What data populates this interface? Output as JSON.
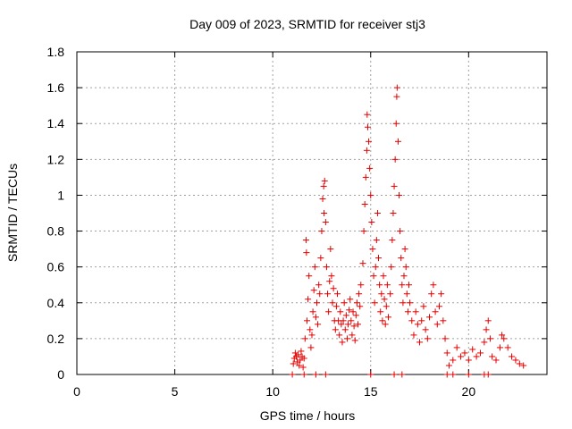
{
  "chart_data": {
    "type": "scatter",
    "title": "Day 009 of 2023, SRMTID for receiver stj3",
    "xlabel": "GPS time / hours",
    "ylabel": "SRMTID / TECUs",
    "xlim": [
      0,
      24
    ],
    "ylim": [
      0,
      1.8
    ],
    "xticks": [
      0,
      5,
      10,
      15,
      20
    ],
    "yticks": [
      0,
      0.2,
      0.4,
      0.6,
      0.8,
      1,
      1.2,
      1.4,
      1.6,
      1.8
    ],
    "xtick_labels": [
      "0",
      "5",
      "10",
      "15",
      "20"
    ],
    "ytick_labels": [
      "0",
      "0.2",
      "0.4",
      "0.6",
      "0.8",
      "1",
      "1.2",
      "1.4",
      "1.6",
      "1.8"
    ],
    "grid": true,
    "marker": "+",
    "color": "#e00000",
    "series": [
      {
        "name": "SRMTID",
        "points": [
          [
            11.0,
            0.0
          ],
          [
            11.05,
            0.06
          ],
          [
            11.1,
            0.09
          ],
          [
            11.15,
            0.12
          ],
          [
            11.2,
            0.1
          ],
          [
            11.25,
            0.07
          ],
          [
            11.3,
            0.11
          ],
          [
            11.35,
            0.05
          ],
          [
            11.4,
            0.08
          ],
          [
            11.45,
            0.13
          ],
          [
            11.5,
            0.1
          ],
          [
            11.55,
            0.04
          ],
          [
            11.6,
            0.09
          ],
          [
            11.65,
            0.2
          ],
          [
            11.6,
            0.0
          ],
          [
            11.75,
            0.3
          ],
          [
            11.8,
            0.42
          ],
          [
            11.85,
            0.55
          ],
          [
            11.9,
            0.25
          ],
          [
            11.95,
            0.15
          ],
          [
            12.0,
            0.22
          ],
          [
            12.05,
            0.35
          ],
          [
            12.1,
            0.47
          ],
          [
            12.15,
            0.6
          ],
          [
            11.7,
            0.75
          ],
          [
            11.72,
            0.68
          ],
          [
            12.2,
            0.0
          ],
          [
            12.2,
            0.32
          ],
          [
            12.25,
            0.4
          ],
          [
            12.3,
            0.28
          ],
          [
            12.35,
            0.5
          ],
          [
            12.4,
            0.45
          ],
          [
            12.45,
            0.65
          ],
          [
            12.5,
            0.8
          ],
          [
            12.55,
            0.98
          ],
          [
            12.6,
            1.05
          ],
          [
            12.62,
            0.9
          ],
          [
            12.65,
            1.08
          ],
          [
            12.7,
            0.85
          ],
          [
            12.7,
            0.0
          ],
          [
            12.75,
            0.6
          ],
          [
            12.8,
            0.45
          ],
          [
            12.85,
            0.35
          ],
          [
            12.9,
            0.52
          ],
          [
            12.95,
            0.7
          ],
          [
            13.0,
            0.55
          ],
          [
            13.05,
            0.4
          ],
          [
            13.1,
            0.48
          ],
          [
            13.15,
            0.3
          ],
          [
            13.2,
            0.25
          ],
          [
            13.25,
            0.38
          ],
          [
            13.3,
            0.45
          ],
          [
            13.35,
            0.3
          ],
          [
            13.4,
            0.22
          ],
          [
            13.45,
            0.35
          ],
          [
            13.5,
            0.28
          ],
          [
            13.55,
            0.18
          ],
          [
            13.6,
            0.3
          ],
          [
            13.65,
            0.4
          ],
          [
            13.7,
            0.25
          ],
          [
            13.75,
            0.33
          ],
          [
            13.8,
            0.2
          ],
          [
            13.85,
            0.28
          ],
          [
            13.9,
            0.36
          ],
          [
            13.95,
            0.42
          ],
          [
            14.0,
            0.3
          ],
          [
            14.05,
            0.22
          ],
          [
            14.1,
            0.35
          ],
          [
            14.15,
            0.27
          ],
          [
            14.2,
            0.19
          ],
          [
            14.25,
            0.33
          ],
          [
            14.3,
            0.4
          ],
          [
            14.35,
            0.28
          ],
          [
            14.4,
            0.45
          ],
          [
            14.45,
            0.38
          ],
          [
            14.5,
            0.5
          ],
          [
            14.6,
            0.62
          ],
          [
            14.65,
            0.8
          ],
          [
            14.7,
            0.95
          ],
          [
            14.75,
            1.1
          ],
          [
            14.8,
            1.25
          ],
          [
            14.82,
            1.45
          ],
          [
            14.85,
            1.38
          ],
          [
            14.9,
            1.3
          ],
          [
            14.95,
            1.15
          ],
          [
            15.0,
            1.0
          ],
          [
            15.05,
            0.85
          ],
          [
            15.0,
            0.0
          ],
          [
            15.1,
            0.7
          ],
          [
            15.15,
            0.55
          ],
          [
            15.2,
            0.4
          ],
          [
            15.25,
            0.6
          ],
          [
            15.3,
            0.75
          ],
          [
            15.35,
            0.9
          ],
          [
            15.4,
            0.65
          ],
          [
            15.45,
            0.5
          ],
          [
            15.5,
            0.35
          ],
          [
            15.55,
            0.45
          ],
          [
            15.6,
            0.3
          ],
          [
            15.65,
            0.55
          ],
          [
            15.7,
            0.42
          ],
          [
            15.75,
            0.28
          ],
          [
            15.8,
            0.38
          ],
          [
            15.85,
            0.5
          ],
          [
            15.9,
            0.32
          ],
          [
            16.0,
            0.45
          ],
          [
            16.05,
            0.6
          ],
          [
            16.1,
            0.75
          ],
          [
            16.15,
            0.9
          ],
          [
            16.2,
            1.05
          ],
          [
            16.25,
            1.2
          ],
          [
            16.3,
            1.4
          ],
          [
            16.33,
            1.55
          ],
          [
            16.35,
            1.6
          ],
          [
            16.4,
            1.3
          ],
          [
            16.45,
            1.0
          ],
          [
            16.5,
            0.8
          ],
          [
            16.55,
            0.65
          ],
          [
            16.6,
            0.5
          ],
          [
            16.65,
            0.4
          ],
          [
            16.7,
            0.55
          ],
          [
            16.75,
            0.7
          ],
          [
            16.8,
            0.6
          ],
          [
            16.85,
            0.45
          ],
          [
            16.9,
            0.35
          ],
          [
            16.95,
            0.5
          ],
          [
            16.2,
            0.0
          ],
          [
            16.6,
            0.0
          ],
          [
            17.0,
            0.4
          ],
          [
            17.1,
            0.3
          ],
          [
            17.2,
            0.22
          ],
          [
            17.3,
            0.35
          ],
          [
            17.4,
            0.28
          ],
          [
            17.5,
            0.18
          ],
          [
            17.6,
            0.3
          ],
          [
            17.7,
            0.38
          ],
          [
            17.8,
            0.25
          ],
          [
            17.9,
            0.2
          ],
          [
            18.0,
            0.32
          ],
          [
            18.1,
            0.45
          ],
          [
            18.2,
            0.5
          ],
          [
            18.3,
            0.35
          ],
          [
            18.4,
            0.28
          ],
          [
            18.5,
            0.38
          ],
          [
            18.6,
            0.45
          ],
          [
            18.7,
            0.3
          ],
          [
            18.8,
            0.2
          ],
          [
            18.9,
            0.12
          ],
          [
            19.0,
            0.05
          ],
          [
            19.2,
            0.08
          ],
          [
            19.4,
            0.15
          ],
          [
            19.6,
            0.1
          ],
          [
            19.8,
            0.12
          ],
          [
            20.0,
            0.08
          ],
          [
            20.2,
            0.14
          ],
          [
            20.4,
            0.1
          ],
          [
            20.6,
            0.12
          ],
          [
            20.8,
            0.18
          ],
          [
            20.9,
            0.25
          ],
          [
            21.0,
            0.3
          ],
          [
            21.1,
            0.2
          ],
          [
            21.2,
            0.1
          ],
          [
            21.4,
            0.08
          ],
          [
            21.6,
            0.15
          ],
          [
            21.7,
            0.22
          ],
          [
            21.8,
            0.2
          ],
          [
            22.0,
            0.15
          ],
          [
            22.2,
            0.1
          ],
          [
            22.4,
            0.08
          ],
          [
            22.6,
            0.06
          ],
          [
            22.8,
            0.05
          ],
          [
            18.9,
            0.0
          ],
          [
            19.2,
            0.0
          ],
          [
            20.0,
            0.0
          ],
          [
            20.8,
            0.0
          ],
          [
            21.0,
            0.0
          ]
        ]
      }
    ]
  }
}
